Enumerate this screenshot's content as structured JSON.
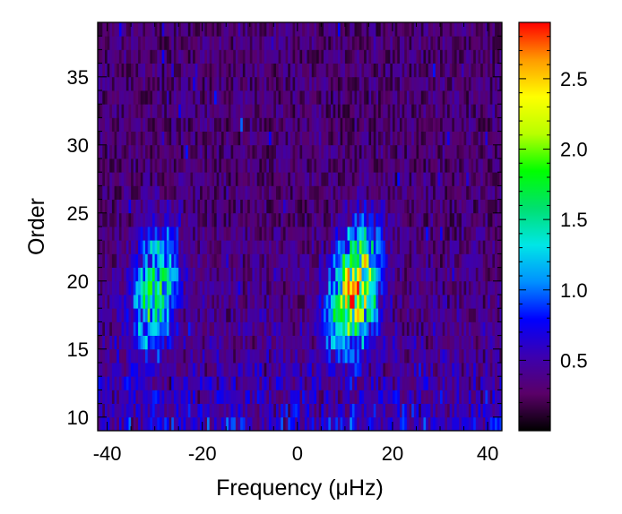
{
  "chart_data": {
    "type": "heatmap",
    "xlabel": "Frequency (μHz)",
    "ylabel": "Order",
    "xlim": [
      -42,
      43
    ],
    "ylim": [
      9,
      39
    ],
    "x_ticks": [
      -40,
      -20,
      0,
      20,
      40
    ],
    "x_tick_labels": [
      "-40",
      "-20",
      "0",
      "20",
      "40"
    ],
    "y_ticks": [
      10,
      15,
      20,
      25,
      30,
      35
    ],
    "y_tick_labels": [
      "10",
      "15",
      "20",
      "25",
      "30",
      "35"
    ],
    "colorbar": {
      "range": [
        0,
        2.9
      ],
      "ticks": [
        0.5,
        1.0,
        1.5,
        2.0,
        2.5
      ],
      "tick_labels": [
        "0.5",
        "1.0",
        "1.5",
        "2.0",
        "2.5"
      ],
      "colormap": [
        "#000000",
        "#5a0068",
        "#3c00b0",
        "#0000ff",
        "#0090ff",
        "#00e6e6",
        "#00e070",
        "#00ff00",
        "#b8ff00",
        "#ffff00",
        "#ff9a00",
        "#ff0000"
      ]
    },
    "orders": {
      "min": 9,
      "max": 38
    },
    "frequency_bin_uHz": 0.5,
    "ridges": [
      {
        "center_uHz": -30,
        "peak_order": 19,
        "peak_value": 1.9
      },
      {
        "center_uHz": 12,
        "peak_order": 19,
        "peak_value": 2.9
      }
    ],
    "background_level": 0.3,
    "grid": false
  },
  "colors": {
    "background": "#ffffff",
    "axis": "#000000"
  }
}
